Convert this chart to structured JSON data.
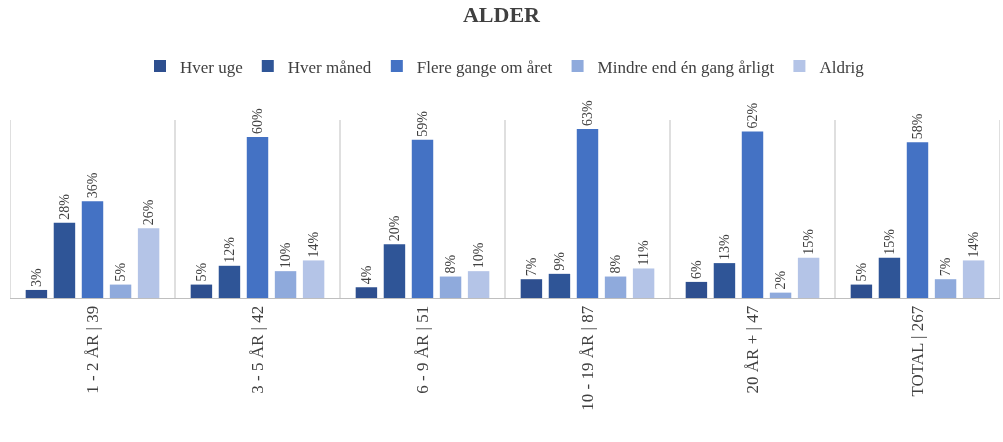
{
  "chart_data": {
    "type": "bar",
    "title": "ALDER",
    "categories": [
      "1 - 2 ÅR | 39",
      "3 - 5 ÅR | 42",
      "6 - 9 ÅR | 51",
      "10 - 19 ÅR | 87",
      "20 ÅR + | 47",
      "TOTAL | 267"
    ],
    "series": [
      {
        "name": "Hver uge",
        "color": "#2e4f8f",
        "values": [
          3,
          5,
          4,
          7,
          6,
          5
        ],
        "value_labels": [
          "3%",
          "5%",
          "4%",
          "7%",
          "6%",
          "5%"
        ]
      },
      {
        "name": "Hver måned",
        "color": "#2f5597",
        "values": [
          28,
          12,
          20,
          9,
          13,
          15
        ],
        "value_labels": [
          "28%",
          "12%",
          "20%",
          "9%",
          "13%",
          "15%"
        ]
      },
      {
        "name": "Flere gange om året",
        "color": "#4472c4",
        "values": [
          36,
          60,
          59,
          63,
          62,
          58
        ],
        "value_labels": [
          "36%",
          "60%",
          "59%",
          "63%",
          "62%",
          "58%"
        ]
      },
      {
        "name": "Mindre end én gang årligt",
        "color": "#8faadc",
        "values": [
          5,
          10,
          8,
          8,
          2,
          7
        ],
        "value_labels": [
          "5%",
          "10%",
          "8%",
          "8%",
          "2%",
          "7%"
        ]
      },
      {
        "name": "Aldrig",
        "color": "#b4c4e7",
        "values": [
          26,
          14,
          10,
          11,
          15,
          14
        ],
        "value_labels": [
          "26%",
          "14%",
          "10%",
          "11%",
          "15%",
          "14%"
        ]
      }
    ],
    "grid": "x",
    "legend": "top"
  }
}
